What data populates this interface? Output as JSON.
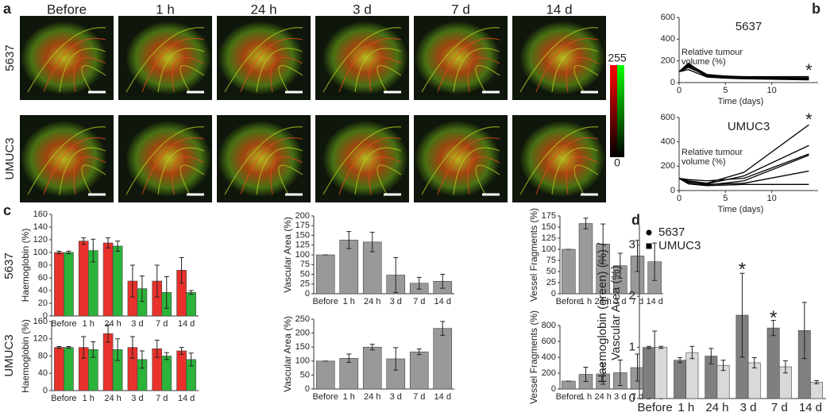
{
  "panel_a": {
    "label": "a",
    "columns": [
      "Before",
      "1 h",
      "24 h",
      "3 d",
      "7 d",
      "14 d"
    ],
    "rows": [
      "5637",
      "UMUC3"
    ],
    "colorbar_ticks": [
      255,
      0
    ]
  },
  "panel_b": {
    "label": "b"
  },
  "panel_c": {
    "label": "c",
    "rows": [
      "5637",
      "UMUC3"
    ]
  },
  "panel_d": {
    "label": "d"
  },
  "chart_data": [
    {
      "type": "line",
      "title": "5637",
      "x_label": "Time (days)",
      "y_label": "Relative tumour volume (%)",
      "x": [
        0,
        1,
        3,
        5,
        7,
        14
      ],
      "xlim": [
        0,
        15
      ],
      "xticks": [
        0,
        5,
        10
      ],
      "ylim": [
        0,
        600
      ],
      "yticks": [
        0,
        200,
        400,
        600
      ],
      "series": [
        {
          "color": "#000000",
          "values": [
            100,
            180,
            60,
            50,
            45,
            35
          ]
        },
        {
          "color": "#000000",
          "values": [
            100,
            160,
            70,
            55,
            50,
            45
          ]
        },
        {
          "color": "#000000",
          "values": [
            100,
            150,
            55,
            45,
            40,
            30
          ]
        },
        {
          "color": "#000000",
          "values": [
            100,
            140,
            65,
            60,
            55,
            55
          ]
        },
        {
          "color": "#000000",
          "values": [
            100,
            120,
            50,
            40,
            35,
            25
          ]
        },
        {
          "color": "#000000",
          "values": [
            100,
            170,
            75,
            60,
            50,
            40
          ]
        }
      ],
      "annotations": [
        {
          "text": "*",
          "x": 14,
          "y": 130
        }
      ]
    },
    {
      "type": "line",
      "title": "UMUC3",
      "x_label": "Time (days)",
      "y_label": "Relative tumour volume (%)",
      "x": [
        0,
        1,
        3,
        7,
        14
      ],
      "xlim": [
        0,
        15
      ],
      "xticks": [
        0,
        5,
        10
      ],
      "ylim": [
        0,
        600
      ],
      "yticks": [
        0,
        200,
        400,
        600
      ],
      "series": [
        {
          "color": "#000000",
          "values": [
            100,
            80,
            60,
            150,
            540
          ]
        },
        {
          "color": "#000000",
          "values": [
            100,
            70,
            55,
            120,
            370
          ]
        },
        {
          "color": "#000000",
          "values": [
            100,
            90,
            80,
            100,
            300
          ]
        },
        {
          "color": "#000000",
          "values": [
            100,
            60,
            45,
            80,
            290
          ]
        },
        {
          "color": "#000000",
          "values": [
            100,
            75,
            50,
            60,
            160
          ]
        },
        {
          "color": "#000000",
          "values": [
            100,
            55,
            40,
            50,
            50
          ]
        }
      ],
      "annotations": [
        {
          "text": "*",
          "x": 14,
          "y": 600
        }
      ]
    },
    {
      "type": "bar",
      "y_label": "Haemoglobin (%)",
      "categories": [
        "Before",
        "1 h",
        "24 h",
        "3 d",
        "7 d",
        "14 d"
      ],
      "ylim": [
        0,
        160
      ],
      "yticks": [
        0,
        20,
        40,
        60,
        80,
        100,
        120,
        140,
        160
      ],
      "series": [
        {
          "color": "#e8322b",
          "values": [
            100,
            118,
            115,
            55,
            55,
            72
          ],
          "errors": [
            2,
            5,
            8,
            25,
            25,
            20
          ]
        },
        {
          "color": "#2cb33a",
          "values": [
            100,
            103,
            110,
            43,
            37,
            37
          ],
          "errors": [
            2,
            18,
            8,
            20,
            25,
            3
          ]
        }
      ]
    },
    {
      "type": "bar",
      "y_label": "Vascular Area (%)",
      "categories": [
        "Before",
        "1 h",
        "24 h",
        "3 d",
        "7 d",
        "14 d"
      ],
      "ylim": [
        0,
        200
      ],
      "yticks": [
        0,
        25,
        50,
        75,
        100,
        125,
        150,
        175,
        200
      ],
      "series": [
        {
          "color": "#999999",
          "values": [
            100,
            138,
            133,
            48,
            27,
            32
          ],
          "errors": [
            0,
            22,
            25,
            45,
            15,
            18
          ]
        }
      ]
    },
    {
      "type": "bar",
      "y_label": "Vessel Fragments (%)",
      "categories": [
        "Before",
        "1 h",
        "24 h",
        "3 d",
        "7 d",
        "14 d"
      ],
      "ylim": [
        0,
        175
      ],
      "yticks": [
        0,
        25,
        50,
        75,
        100,
        125,
        150,
        175
      ],
      "series": [
        {
          "color": "#999999",
          "values": [
            100,
            158,
            112,
            63,
            85,
            72
          ],
          "errors": [
            0,
            12,
            45,
            28,
            35,
            42
          ]
        }
      ]
    },
    {
      "type": "bar",
      "y_label": "Haemoglobin (%)",
      "categories": [
        "Before",
        "1 h",
        "24 h",
        "3 d",
        "7 d",
        "14 d"
      ],
      "ylim": [
        0,
        160
      ],
      "yticks": [
        0,
        40,
        80,
        120,
        160
      ],
      "series": [
        {
          "color": "#e8322b",
          "values": [
            100,
            100,
            132,
            100,
            97,
            92
          ],
          "errors": [
            2,
            25,
            20,
            25,
            20,
            8
          ]
        },
        {
          "color": "#2cb33a",
          "values": [
            100,
            95,
            95,
            72,
            80,
            72
          ],
          "errors": [
            2,
            18,
            25,
            20,
            8,
            15
          ]
        }
      ]
    },
    {
      "type": "bar",
      "y_label": "Vascular Area (%)",
      "categories": [
        "Before",
        "1 h",
        "24 h",
        "3 d",
        "7 d",
        "14 d"
      ],
      "ylim": [
        0,
        250
      ],
      "yticks": [
        0,
        50,
        100,
        150,
        200,
        250
      ],
      "series": [
        {
          "color": "#999999",
          "values": [
            100,
            110,
            150,
            108,
            133,
            217
          ],
          "errors": [
            0,
            15,
            10,
            40,
            10,
            25
          ]
        }
      ]
    },
    {
      "type": "bar",
      "y_label": "Vessel Fragments (%)",
      "categories": [
        "Before",
        "1 h",
        "24 h",
        "3 d",
        "7 d",
        "14 d"
      ],
      "ylim": [
        0,
        800
      ],
      "yticks": [
        0,
        200,
        400,
        600,
        800
      ],
      "series": [
        {
          "color": "#999999",
          "values": [
            100,
            185,
            190,
            205,
            270,
            500
          ],
          "errors": [
            0,
            90,
            130,
            160,
            170,
            230
          ]
        }
      ]
    },
    {
      "type": "bar",
      "y_label": "Haemoglobin (green) (%) / Vascular Area (%)",
      "categories": [
        "Before",
        "1 h",
        "24 h",
        "3 d",
        "7 d",
        "14 d"
      ],
      "ylim": [
        0,
        3.4
      ],
      "yticks": [
        0,
        1,
        2,
        3
      ],
      "legend": "top-left",
      "series": [
        {
          "name": "5637",
          "marker": "circle",
          "color": "#7f7f7f",
          "values": [
            1,
            0.75,
            0.83,
            1.63,
            1.38,
            1.33
          ],
          "errors": [
            0.02,
            0.05,
            0.15,
            0.82,
            0.15,
            0.55
          ]
        },
        {
          "name": "UMUC3",
          "marker": "square",
          "color": "#d9d9d9",
          "values": [
            1,
            0.9,
            0.65,
            0.7,
            0.62,
            0.32
          ],
          "errors": [
            0.02,
            0.12,
            0.1,
            0.1,
            0.12,
            0.03
          ]
        }
      ],
      "annotations": [
        {
          "text": "*",
          "x": "3 d",
          "y": 2.6
        },
        {
          "text": "*",
          "x": "7 d",
          "y": 1.65
        }
      ]
    }
  ]
}
